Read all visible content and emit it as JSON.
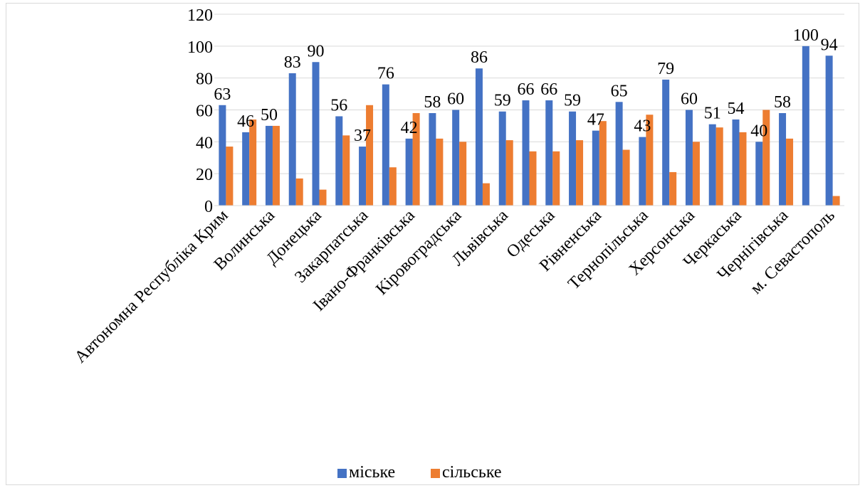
{
  "chart_data": {
    "type": "bar",
    "title": "",
    "xlabel": "",
    "ylabel": "",
    "ylim": [
      0,
      120
    ],
    "yticks": [
      0,
      20,
      40,
      60,
      80,
      100,
      120
    ],
    "grid": true,
    "legend_position": "bottom",
    "categories": [
      "Автономна Республіка Крим",
      "",
      "Волинська",
      "",
      "Донецька",
      "",
      "Закарпатська",
      "",
      "Івано-Франківська",
      "",
      "Кіровоградська",
      "",
      "Львівська",
      "",
      "Одеська",
      "",
      "Рівненська",
      "",
      "Тернопільська",
      "",
      "Херсонська",
      "",
      "Черкаська",
      "",
      "Чернігівська",
      "",
      "м. Севастополь"
    ],
    "series": [
      {
        "name": "міське",
        "color": "#4472c4",
        "values": [
          63,
          46,
          50,
          83,
          90,
          56,
          37,
          76,
          42,
          58,
          60,
          86,
          59,
          66,
          66,
          59,
          47,
          65,
          43,
          79,
          60,
          51,
          54,
          40,
          58,
          100,
          94
        ]
      },
      {
        "name": "сільське",
        "color": "#ed7d31",
        "values": [
          37,
          54,
          50,
          17,
          10,
          44,
          63,
          24,
          58,
          42,
          40,
          14,
          41,
          34,
          34,
          41,
          53,
          35,
          57,
          21,
          40,
          49,
          46,
          60,
          42,
          0,
          6
        ]
      }
    ],
    "data_labels_series": "міське"
  }
}
